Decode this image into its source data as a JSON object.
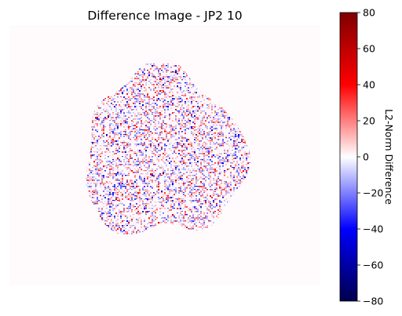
{
  "chart_data": [
    {
      "type": "heatmap",
      "title": "Difference Image - JP2 10",
      "axes_visible": false,
      "blob_shape": "irregular rounded blob of fine red/blue speckle noise centered in the frame",
      "background_color": "#fffbfd",
      "colormap": "seismic",
      "value_range": [
        -80,
        80
      ],
      "noise_amplitude_typical": 20
    },
    {
      "type": "colorbar",
      "label": "L2-Norm Difference",
      "ylim": [
        -80,
        80
      ],
      "ticks": [
        {
          "value": 80,
          "label": "80"
        },
        {
          "value": 60,
          "label": "60"
        },
        {
          "value": 40,
          "label": "40"
        },
        {
          "value": 20,
          "label": "20"
        },
        {
          "value": 0,
          "label": "0"
        },
        {
          "value": -20,
          "label": "−20"
        },
        {
          "value": -40,
          "label": "−40"
        },
        {
          "value": -60,
          "label": "−60"
        },
        {
          "value": -80,
          "label": "−80"
        }
      ],
      "colormap_stops": [
        {
          "value": -80,
          "color": "#00004c"
        },
        {
          "value": -40,
          "color": "#0000ff"
        },
        {
          "value": 0,
          "color": "#ffffff"
        },
        {
          "value": 40,
          "color": "#ff0000"
        },
        {
          "value": 80,
          "color": "#7f0000"
        }
      ]
    }
  ]
}
